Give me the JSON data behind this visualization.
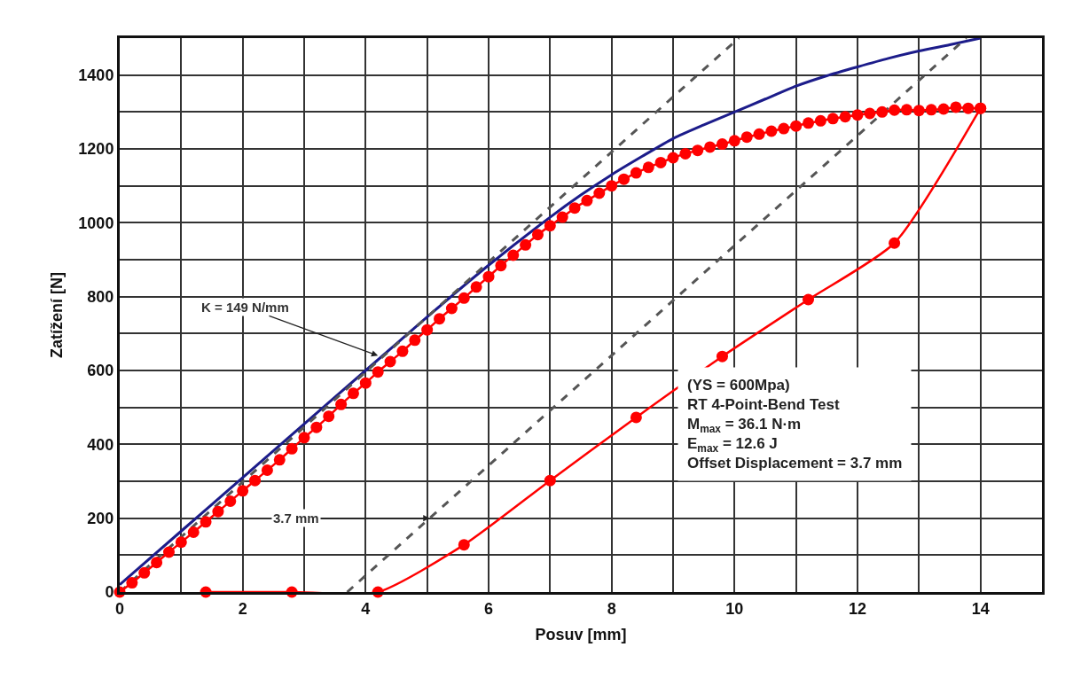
{
  "chart_data": {
    "type": "line",
    "xlabel": "Posuv [mm]",
    "ylabel": "Zatížení [N]",
    "xlim": [
      0,
      15
    ],
    "xticks": [
      0,
      {
        "value": 1,
        "label": null
      },
      2,
      {
        "value": 3,
        "label": null
      },
      4,
      {
        "value": 5,
        "label": null
      },
      6,
      {
        "value": 7,
        "label": null
      },
      8,
      {
        "value": 9,
        "label": null
      },
      10,
      {
        "value": 11,
        "label": null
      },
      12,
      {
        "value": 13,
        "label": null
      },
      14,
      {
        "value": 15,
        "label": null
      }
    ],
    "ylim": [
      0,
      1500
    ],
    "yticks": [
      0,
      {
        "value": 100,
        "label": null
      },
      200,
      {
        "value": 300,
        "label": null
      },
      400,
      {
        "value": 500,
        "label": null
      },
      600,
      {
        "value": 700,
        "label": null
      },
      800,
      {
        "value": 900,
        "label": null
      },
      1000,
      {
        "value": 1100,
        "label": null
      },
      1200,
      {
        "value": 1300,
        "label": null
      },
      1400,
      {
        "value": 1500,
        "label": null
      }
    ],
    "grid": true,
    "series": [
      {
        "type": "line",
        "color": "#1c1c8a",
        "marker": "none",
        "line_style": "solid",
        "x": [
          0,
          1,
          2,
          3,
          4,
          5,
          6,
          7,
          7.5,
          8,
          8.5,
          9,
          9.5,
          10,
          10.5,
          11,
          11.5,
          12,
          12.5,
          13,
          13.5,
          14
        ],
        "values": [
          20,
          165,
          310,
          455,
          600,
          745,
          885,
          1015,
          1075,
          1130,
          1180,
          1228,
          1265,
          1300,
          1335,
          1370,
          1398,
          1422,
          1445,
          1465,
          1482,
          1500
        ]
      },
      {
        "type": "line",
        "color": "#555555",
        "marker": "none",
        "line_style": "dashed",
        "x": [
          0,
          10.07
        ],
        "values": [
          0,
          1500
        ]
      },
      {
        "type": "line",
        "color": "#555555",
        "marker": "none",
        "line_style": "dashed",
        "x": [
          3.7,
          13.77
        ],
        "values": [
          0,
          1500
        ]
      },
      {
        "type": "line",
        "color": "#ff0000",
        "marker": "circle",
        "line_style": "solid",
        "x": [
          0,
          0.2,
          0.4,
          0.6,
          0.8,
          1,
          1.2,
          1.4,
          1.6,
          1.8,
          2,
          2.2,
          2.4,
          2.6,
          2.8,
          3,
          3.2,
          3.4,
          3.6,
          3.8,
          4,
          4.2,
          4.4,
          4.6,
          4.8,
          5,
          5.2,
          5.4,
          5.6,
          5.8,
          6,
          6.2,
          6.4,
          6.6,
          6.8,
          7,
          7.2,
          7.4,
          7.6,
          7.8,
          8,
          8.2,
          8.4,
          8.6,
          8.8,
          9,
          9.2,
          9.4,
          9.6,
          9.8,
          10,
          10.2,
          10.4,
          10.6,
          10.8,
          11,
          11.2,
          11.4,
          11.6,
          11.8,
          12,
          12.2,
          12.4,
          12.6,
          12.8,
          13,
          13.2,
          13.4,
          13.6,
          13.8,
          14
        ],
        "values": [
          0,
          25,
          52,
          80,
          108,
          135,
          162,
          190,
          218,
          246,
          274,
          302,
          330,
          358,
          388,
          418,
          446,
          476,
          508,
          538,
          566,
          596,
          624,
          652,
          682,
          710,
          740,
          768,
          796,
          826,
          854,
          884,
          912,
          940,
          968,
          992,
          1015,
          1040,
          1060,
          1080,
          1100,
          1118,
          1135,
          1150,
          1163,
          1176,
          1187,
          1196,
          1205,
          1213,
          1222,
          1232,
          1240,
          1248,
          1255,
          1262,
          1270,
          1276,
          1282,
          1287,
          1292,
          1296,
          1300,
          1305,
          1306,
          1304,
          1306,
          1308,
          1313,
          1310,
          1310
        ]
      },
      {
        "type": "line",
        "color": "#ff0000",
        "marker": "circle",
        "line_style": "solid",
        "x": [
          1.4,
          2.8,
          4.2,
          5.6,
          7,
          8.4,
          9.8,
          11.2,
          12.6,
          14
        ],
        "values": [
          0,
          0,
          0,
          128,
          302,
          473,
          638,
          792,
          945,
          1310
        ]
      }
    ],
    "annotations": [
      {
        "text": "K = 149 N/mm",
        "x": 4.2,
        "y": 640
      },
      {
        "text": "3.7 mm",
        "x": 5.04,
        "y": 200
      },
      "(YS = 600Mpa)",
      "RT 4-Point-Bend Test",
      "M$_{max}$ = 36.1 N·m",
      "E$_{max}$ = 12.6 J",
      "Offset Displacement = 3.7 mm"
    ]
  }
}
